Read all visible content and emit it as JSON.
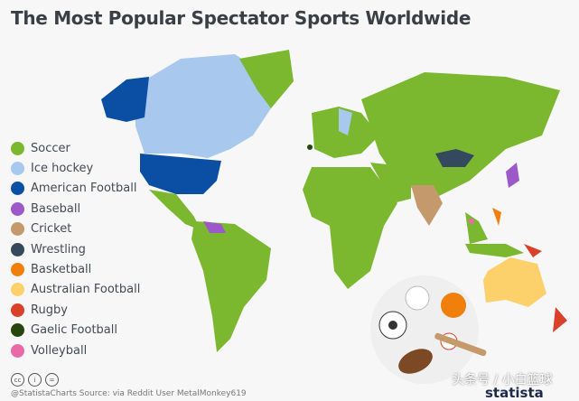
{
  "title": "The Most Popular Spectator Sports Worldwide",
  "legend": [
    {
      "label": "Soccer",
      "color": "#7cb82f"
    },
    {
      "label": "Ice hockey",
      "color": "#a9c8ee"
    },
    {
      "label": "American Football",
      "color": "#0a4fa3"
    },
    {
      "label": "Baseball",
      "color": "#9b59c9"
    },
    {
      "label": "Cricket",
      "color": "#c49a6c"
    },
    {
      "label": "Wrestling",
      "color": "#34495e"
    },
    {
      "label": "Basketball",
      "color": "#f07f0c"
    },
    {
      "label": "Australian Football",
      "color": "#fcd06a"
    },
    {
      "label": "Rugby",
      "color": "#d9412b"
    },
    {
      "label": "Gaelic Football",
      "color": "#27460f"
    },
    {
      "label": "Volleyball",
      "color": "#e86aa8"
    }
  ],
  "license_icons": [
    "cc-icon",
    "by-icon",
    "nd-icon"
  ],
  "footer": {
    "source": "@StatistaCharts    Source: via Reddit User MetalMonkey619",
    "brand": "statista",
    "watermark": "头条号 / 小白篮球"
  }
}
